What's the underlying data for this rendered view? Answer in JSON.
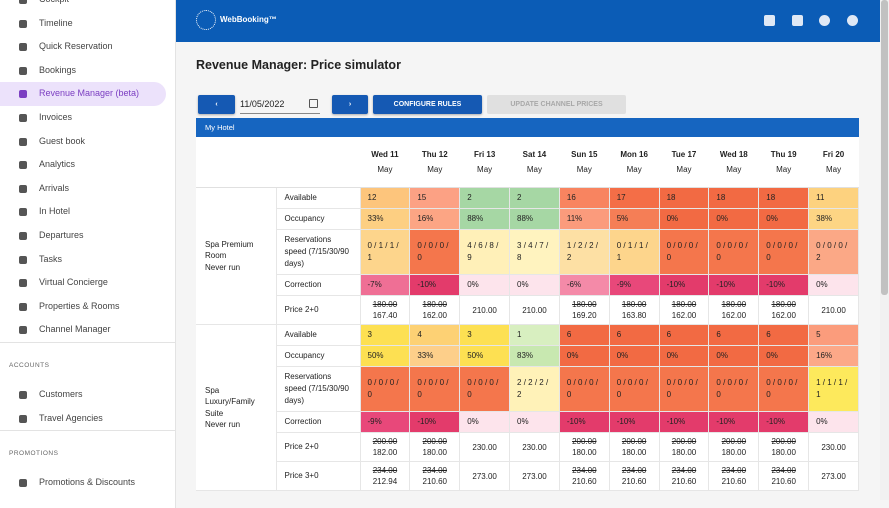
{
  "sidebar": {
    "groups": [
      {
        "items": [
          {
            "label": "Cockpit"
          },
          {
            "label": "Timeline"
          },
          {
            "label": "Quick Reservation"
          },
          {
            "label": "Bookings"
          },
          {
            "label": "Revenue Manager (beta)",
            "active": true
          },
          {
            "label": "Invoices"
          },
          {
            "label": "Guest book"
          },
          {
            "label": "Analytics"
          },
          {
            "label": "Arrivals"
          },
          {
            "label": "In Hotel"
          },
          {
            "label": "Departures"
          },
          {
            "label": "Tasks"
          },
          {
            "label": "Virtual Concierge"
          },
          {
            "label": "Properties & Rooms"
          },
          {
            "label": "Channel Manager"
          }
        ]
      },
      {
        "title": "ACCOUNTS",
        "items": [
          {
            "label": "Customers"
          },
          {
            "label": "Travel Agencies"
          }
        ]
      },
      {
        "title": "PROMOTIONS",
        "items": [
          {
            "label": "Promotions & Discounts"
          }
        ]
      }
    ]
  },
  "topbar": {
    "brand": "WebBooking™"
  },
  "page": {
    "title": "Revenue Manager: Price simulator",
    "date": "11/05/2022",
    "configure": "CONFIGURE RULES",
    "update": "UPDATE CHANNEL PRICES"
  },
  "hotel": {
    "name": "My Hotel",
    "days": [
      {
        "date": "Wed 11",
        "month": "May"
      },
      {
        "date": "Thu 12",
        "month": "May"
      },
      {
        "date": "Fri 13",
        "month": "May"
      },
      {
        "date": "Sat 14",
        "month": "May"
      },
      {
        "date": "Sun 15",
        "month": "May"
      },
      {
        "date": "Mon 16",
        "month": "May"
      },
      {
        "date": "Tue 17",
        "month": "May"
      },
      {
        "date": "Wed 18",
        "month": "May"
      },
      {
        "date": "Thu 19",
        "month": "May"
      },
      {
        "date": "Fri 20",
        "month": "May"
      }
    ],
    "rooms": [
      {
        "name": "Spa Premium Room",
        "status": "Never run",
        "rows": [
          {
            "label": "Available",
            "cells": [
              {
                "text": "12",
                "color": "#fdc57c"
              },
              {
                "text": "15",
                "color": "#fca184"
              },
              {
                "text": "2",
                "color": "#a6d7a4"
              },
              {
                "text": "2",
                "color": "#a6d7a4"
              },
              {
                "text": "16",
                "color": "#f88460"
              },
              {
                "text": "17",
                "color": "#f46e47"
              },
              {
                "text": "18",
                "color": "#f26a43"
              },
              {
                "text": "18",
                "color": "#f26a43"
              },
              {
                "text": "18",
                "color": "#f26a43"
              },
              {
                "text": "11",
                "color": "#fdd27f"
              }
            ]
          },
          {
            "label": "Occupancy",
            "cells": [
              {
                "text": "33%",
                "color": "#fdcf82"
              },
              {
                "text": "16%",
                "color": "#fca584"
              },
              {
                "text": "88%",
                "color": "#a6d7a4"
              },
              {
                "text": "88%",
                "color": "#a6d7a4"
              },
              {
                "text": "11%",
                "color": "#fb9b7c"
              },
              {
                "text": "5%",
                "color": "#f57e56"
              },
              {
                "text": "0%",
                "color": "#f26a43"
              },
              {
                "text": "0%",
                "color": "#f26a43"
              },
              {
                "text": "0%",
                "color": "#f26a43"
              },
              {
                "text": "38%",
                "color": "#fdd584"
              }
            ]
          },
          {
            "label": "Reservations speed (7/15/30/90 days)",
            "cells": [
              {
                "text": "0 / 1 / 1 / 1",
                "color": "#fdd58c"
              },
              {
                "text": "0 / 0 / 0 / 0",
                "color": "#f4764c"
              },
              {
                "text": "4 / 6 / 8 / 9",
                "color": "#fff0b8"
              },
              {
                "text": "3 / 4 / 7 / 8",
                "color": "#fff3bf"
              },
              {
                "text": "1 / 2 / 2 / 2",
                "color": "#fde0a4"
              },
              {
                "text": "0 / 1 / 1 / 1",
                "color": "#fdd58c"
              },
              {
                "text": "0 / 0 / 0 / 0",
                "color": "#f4764c"
              },
              {
                "text": "0 / 0 / 0 / 0",
                "color": "#f4764c"
              },
              {
                "text": "0 / 0 / 0 / 0",
                "color": "#f4764c"
              },
              {
                "text": "0 / 0 / 0 / 2",
                "color": "#fba886"
              }
            ]
          },
          {
            "label": "Correction",
            "cells": [
              {
                "text": "-7%",
                "color": "#ef6f95"
              },
              {
                "text": "-10%",
                "color": "#e33b6b"
              },
              {
                "text": "0%",
                "color": "#fde4ec"
              },
              {
                "text": "0%",
                "color": "#fde4ec"
              },
              {
                "text": "-6%",
                "color": "#f48aa8"
              },
              {
                "text": "-9%",
                "color": "#e8487a"
              },
              {
                "text": "-10%",
                "color": "#e33b6b"
              },
              {
                "text": "-10%",
                "color": "#e33b6b"
              },
              {
                "text": "-10%",
                "color": "#e33b6b"
              },
              {
                "text": "0%",
                "color": "#fde4ec"
              }
            ]
          },
          {
            "label": "Price 2+0",
            "cells": [
              {
                "old": "180.00",
                "new": "167.40"
              },
              {
                "old": "180.00",
                "new": "162.00"
              },
              {
                "new": "210.00"
              },
              {
                "new": "210.00"
              },
              {
                "old": "180.00",
                "new": "169.20"
              },
              {
                "old": "180.00",
                "new": "163.80"
              },
              {
                "old": "180.00",
                "new": "162.00"
              },
              {
                "old": "180.00",
                "new": "162.00"
              },
              {
                "old": "180.00",
                "new": "162.00"
              },
              {
                "new": "210.00"
              }
            ]
          }
        ]
      },
      {
        "name": "Spa Luxury/Family Suite",
        "status": "Never run",
        "rows": [
          {
            "label": "Available",
            "cells": [
              {
                "text": "3",
                "color": "#fde052"
              },
              {
                "text": "4",
                "color": "#fdd174"
              },
              {
                "text": "3",
                "color": "#fde052"
              },
              {
                "text": "1",
                "color": "#d8efc0"
              },
              {
                "text": "6",
                "color": "#f26a43"
              },
              {
                "text": "6",
                "color": "#f26a43"
              },
              {
                "text": "6",
                "color": "#f26a43"
              },
              {
                "text": "6",
                "color": "#f26a43"
              },
              {
                "text": "6",
                "color": "#f26a43"
              },
              {
                "text": "5",
                "color": "#fb9c7c"
              }
            ]
          },
          {
            "label": "Occupancy",
            "cells": [
              {
                "text": "50%",
                "color": "#fde052"
              },
              {
                "text": "33%",
                "color": "#fdcf8a"
              },
              {
                "text": "50%",
                "color": "#fde052"
              },
              {
                "text": "83%",
                "color": "#c8e8b0"
              },
              {
                "text": "0%",
                "color": "#f26a43"
              },
              {
                "text": "0%",
                "color": "#f26a43"
              },
              {
                "text": "0%",
                "color": "#f26a43"
              },
              {
                "text": "0%",
                "color": "#f26a43"
              },
              {
                "text": "0%",
                "color": "#f26a43"
              },
              {
                "text": "16%",
                "color": "#fca888"
              }
            ]
          },
          {
            "label": "Reservations speed (7/15/30/90 days)",
            "cells": [
              {
                "text": "0 / 0 / 0 / 0",
                "color": "#f4764c"
              },
              {
                "text": "0 / 0 / 0 / 0",
                "color": "#f4764c"
              },
              {
                "text": "0 / 0 / 0 / 0",
                "color": "#f4764c"
              },
              {
                "text": "2 / 2 / 2 / 2",
                "color": "#fff2b8"
              },
              {
                "text": "0 / 0 / 0 / 0",
                "color": "#f4764c"
              },
              {
                "text": "0 / 0 / 0 / 0",
                "color": "#f4764c"
              },
              {
                "text": "0 / 0 / 0 / 0",
                "color": "#f4764c"
              },
              {
                "text": "0 / 0 / 0 / 0",
                "color": "#f4764c"
              },
              {
                "text": "0 / 0 / 0 / 0",
                "color": "#f4764c"
              },
              {
                "text": "1 / 1 / 1 / 1",
                "color": "#fde95c"
              }
            ]
          },
          {
            "label": "Correction",
            "cells": [
              {
                "text": "-9%",
                "color": "#e8487a"
              },
              {
                "text": "-10%",
                "color": "#e33b6b"
              },
              {
                "text": "0%",
                "color": "#fde4ec"
              },
              {
                "text": "0%",
                "color": "#fde4ec"
              },
              {
                "text": "-10%",
                "color": "#e33b6b"
              },
              {
                "text": "-10%",
                "color": "#e33b6b"
              },
              {
                "text": "-10%",
                "color": "#e33b6b"
              },
              {
                "text": "-10%",
                "color": "#e33b6b"
              },
              {
                "text": "-10%",
                "color": "#e33b6b"
              },
              {
                "text": "0%",
                "color": "#fde4ec"
              }
            ]
          },
          {
            "label": "Price 2+0",
            "cells": [
              {
                "old": "200.00",
                "new": "182.00"
              },
              {
                "old": "200.00",
                "new": "180.00"
              },
              {
                "new": "230.00"
              },
              {
                "new": "230.00"
              },
              {
                "old": "200.00",
                "new": "180.00"
              },
              {
                "old": "200.00",
                "new": "180.00"
              },
              {
                "old": "200.00",
                "new": "180.00"
              },
              {
                "old": "200.00",
                "new": "180.00"
              },
              {
                "old": "200.00",
                "new": "180.00"
              },
              {
                "new": "230.00"
              }
            ]
          },
          {
            "label": "Price 3+0",
            "cells": [
              {
                "old": "234.00",
                "new": "212.94"
              },
              {
                "old": "234.00",
                "new": "210.60"
              },
              {
                "new": "273.00"
              },
              {
                "new": "273.00"
              },
              {
                "old": "234.00",
                "new": "210.60"
              },
              {
                "old": "234.00",
                "new": "210.60"
              },
              {
                "old": "234.00",
                "new": "210.60"
              },
              {
                "old": "234.00",
                "new": "210.60"
              },
              {
                "old": "234.00",
                "new": "210.60"
              },
              {
                "new": "273.00"
              }
            ]
          }
        ]
      }
    ]
  }
}
